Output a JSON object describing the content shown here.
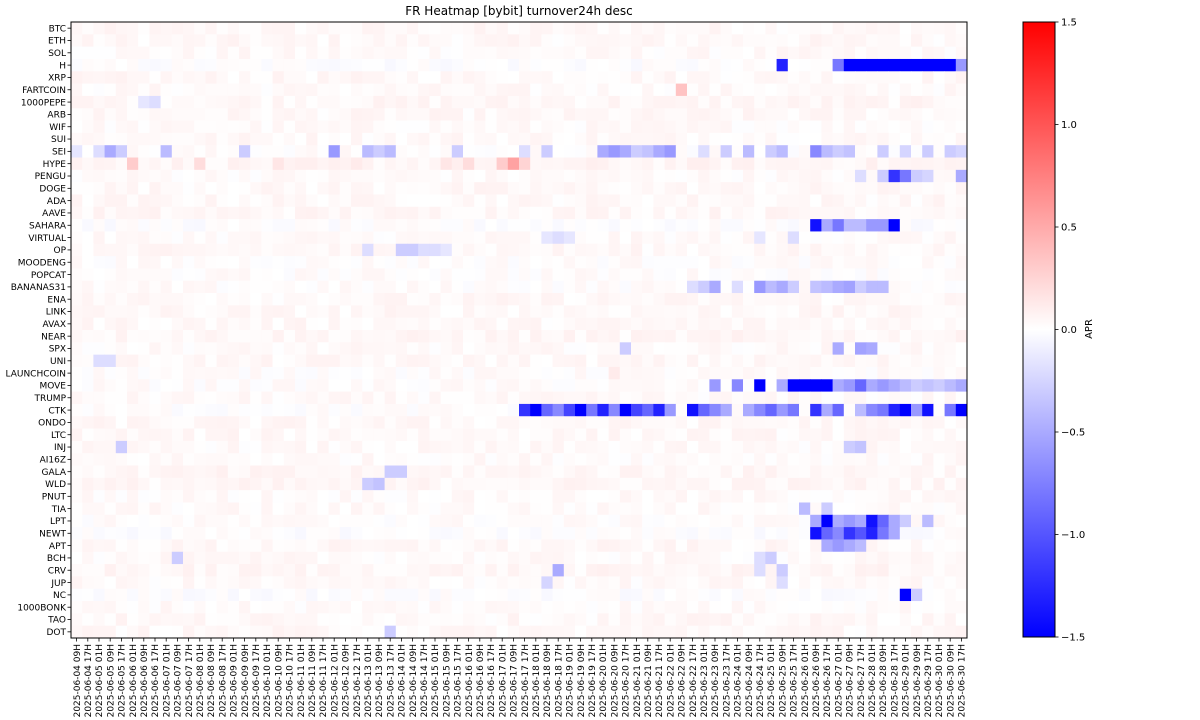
{
  "chart_data": {
    "type": "heatmap",
    "title": "FR Heatmap [bybit] turnover24h desc",
    "colorbar": {
      "label": "APR",
      "range": [
        -1.5,
        1.5
      ],
      "ticks": [
        "1.5",
        "1.0",
        "0.5",
        "0.0",
        "−0.5",
        "−1.0",
        "−1.5"
      ],
      "tick_values": [
        1.5,
        1.0,
        0.5,
        0.0,
        -0.5,
        -1.0,
        -1.5
      ],
      "colormap": "bwr",
      "colors": {
        "low": "#0000ff",
        "mid": "#ffffff",
        "high": "#ff0000"
      }
    },
    "rows": [
      "BTC",
      "ETH",
      "SOL",
      "H",
      "XRP",
      "FARTCOIN",
      "1000PEPE",
      "ARB",
      "WIF",
      "SUI",
      "SEI",
      "HYPE",
      "PENGU",
      "DOGE",
      "ADA",
      "AAVE",
      "SAHARA",
      "VIRTUAL",
      "OP",
      "MOODENG",
      "POPCAT",
      "BANANAS31",
      "ENA",
      "LINK",
      "AVAX",
      "NEAR",
      "SPX",
      "UNI",
      "LAUNCHCOIN",
      "MOVE",
      "TRUMP",
      "CTK",
      "ONDO",
      "LTC",
      "INJ",
      "AI16Z",
      "GALA",
      "WLD",
      "PNUT",
      "TIA",
      "LPT",
      "NEWT",
      "APT",
      "BCH",
      "CRV",
      "JUP",
      "NC",
      "1000BONK",
      "TAO",
      "DOT"
    ],
    "columns": [
      "2025-06-04 09H",
      "2025-06-04 17H",
      "2025-06-05 01H",
      "2025-06-05 09H",
      "2025-06-05 17H",
      "2025-06-06 01H",
      "2025-06-06 09H",
      "2025-06-06 17H",
      "2025-06-07 01H",
      "2025-06-07 09H",
      "2025-06-07 17H",
      "2025-06-08 01H",
      "2025-06-08 09H",
      "2025-06-08 17H",
      "2025-06-09 01H",
      "2025-06-09 09H",
      "2025-06-09 17H",
      "2025-06-10 01H",
      "2025-06-10 09H",
      "2025-06-10 17H",
      "2025-06-11 01H",
      "2025-06-11 09H",
      "2025-06-11 17H",
      "2025-06-12 01H",
      "2025-06-12 09H",
      "2025-06-12 17H",
      "2025-06-13 01H",
      "2025-06-13 09H",
      "2025-06-13 17H",
      "2025-06-14 01H",
      "2025-06-14 09H",
      "2025-06-14 17H",
      "2025-06-15 01H",
      "2025-06-15 09H",
      "2025-06-15 17H",
      "2025-06-16 01H",
      "2025-06-16 09H",
      "2025-06-16 17H",
      "2025-06-17 01H",
      "2025-06-17 09H",
      "2025-06-17 17H",
      "2025-06-18 01H",
      "2025-06-18 09H",
      "2025-06-18 17H",
      "2025-06-19 01H",
      "2025-06-19 09H",
      "2025-06-19 17H",
      "2025-06-20 01H",
      "2025-06-20 09H",
      "2025-06-20 17H",
      "2025-06-21 01H",
      "2025-06-21 09H",
      "2025-06-21 17H",
      "2025-06-22 01H",
      "2025-06-22 09H",
      "2025-06-22 17H",
      "2025-06-23 01H",
      "2025-06-23 09H",
      "2025-06-23 17H",
      "2025-06-24 01H",
      "2025-06-24 09H",
      "2025-06-24 17H",
      "2025-06-25 01H",
      "2025-06-25 09H",
      "2025-06-25 17H",
      "2025-06-26 01H",
      "2025-06-26 09H",
      "2025-06-26 17H",
      "2025-06-27 01H",
      "2025-06-27 09H",
      "2025-06-27 17H",
      "2025-06-28 01H",
      "2025-06-28 09H",
      "2025-06-28 17H",
      "2025-06-29 01H",
      "2025-06-29 09H",
      "2025-06-29 17H",
      "2025-06-30 01H",
      "2025-06-30 09H",
      "2025-06-30 17H"
    ],
    "cells_per_column_label": 1,
    "n_cells": 80,
    "baseline": {
      "BTC": 0.04,
      "ETH": 0.04,
      "SOL": 0.03,
      "H": 0.0,
      "XRP": 0.04,
      "FARTCOIN": 0.03,
      "1000PEPE": 0.05,
      "ARB": 0.04,
      "WIF": 0.03,
      "SUI": 0.04,
      "SEI": 0.02,
      "HYPE": 0.06,
      "PENGU": 0.03,
      "DOGE": 0.04,
      "ADA": 0.04,
      "AAVE": 0.05,
      "SAHARA": 0.0,
      "VIRTUAL": 0.03,
      "OP": 0.04,
      "MOODENG": 0.02,
      "POPCAT": 0.02,
      "BANANAS31": 0.02,
      "ENA": 0.04,
      "LINK": 0.04,
      "AVAX": 0.04,
      "NEAR": 0.05,
      "SPX": 0.03,
      "UNI": 0.04,
      "LAUNCHCOIN": 0.02,
      "MOVE": 0.02,
      "TRUMP": 0.03,
      "CTK": 0.01,
      "ONDO": 0.04,
      "LTC": 0.04,
      "INJ": 0.03,
      "AI16Z": 0.03,
      "GALA": 0.05,
      "WLD": 0.05,
      "PNUT": 0.03,
      "TIA": 0.03,
      "LPT": 0.02,
      "NEWT": 0.0,
      "APT": 0.04,
      "BCH": 0.03,
      "CRV": 0.05,
      "JUP": 0.03,
      "NC": 0.0,
      "1000BONK": 0.03,
      "TAO": 0.04,
      "DOT": 0.04
    },
    "cells": {
      "H": [
        [
          63,
          -1.3
        ],
        [
          68,
          -0.8
        ],
        [
          69,
          -1.5
        ],
        [
          70,
          -1.5
        ],
        [
          71,
          -1.5
        ],
        [
          72,
          -1.5
        ],
        [
          73,
          -1.5
        ],
        [
          74,
          -1.5
        ],
        [
          75,
          -1.5
        ],
        [
          76,
          -1.5
        ],
        [
          77,
          -1.5
        ],
        [
          78,
          -1.5
        ],
        [
          79,
          -0.6
        ]
      ],
      "FARTCOIN": [
        [
          54,
          0.35
        ]
      ],
      "1000PEPE": [
        [
          6,
          -0.15
        ],
        [
          7,
          -0.2
        ]
      ],
      "SEI": [
        [
          0,
          -0.15
        ],
        [
          2,
          -0.2
        ],
        [
          3,
          -0.5
        ],
        [
          4,
          -0.3
        ],
        [
          8,
          -0.4
        ],
        [
          15,
          -0.3
        ],
        [
          23,
          -0.6
        ],
        [
          26,
          -0.4
        ],
        [
          27,
          -0.3
        ],
        [
          28,
          -0.4
        ],
        [
          34,
          -0.3
        ],
        [
          40,
          -0.2
        ],
        [
          42,
          -0.3
        ],
        [
          47,
          -0.5
        ],
        [
          48,
          -0.6
        ],
        [
          49,
          -0.5
        ],
        [
          50,
          -0.3
        ],
        [
          51,
          -0.35
        ],
        [
          52,
          -0.5
        ],
        [
          53,
          -0.6
        ],
        [
          56,
          -0.2
        ],
        [
          58,
          -0.3
        ],
        [
          60,
          -0.4
        ],
        [
          62,
          -0.3
        ],
        [
          63,
          -0.4
        ],
        [
          66,
          -0.7
        ],
        [
          67,
          -0.4
        ],
        [
          68,
          -0.3
        ],
        [
          69,
          -0.35
        ],
        [
          72,
          -0.3
        ],
        [
          74,
          -0.25
        ],
        [
          76,
          -0.3
        ],
        [
          78,
          -0.3
        ],
        [
          79,
          -0.25
        ]
      ],
      "HYPE": [
        [
          5,
          0.3
        ],
        [
          11,
          0.2
        ],
        [
          18,
          0.15
        ],
        [
          25,
          0.12
        ],
        [
          33,
          0.15
        ],
        [
          35,
          0.2
        ],
        [
          38,
          0.3
        ],
        [
          39,
          0.55
        ],
        [
          40,
          0.25
        ]
      ],
      "PENGU": [
        [
          70,
          -0.2
        ],
        [
          72,
          -0.3
        ],
        [
          73,
          -1.2
        ],
        [
          74,
          -0.8
        ],
        [
          75,
          -0.3
        ],
        [
          76,
          -0.25
        ],
        [
          79,
          -0.5
        ]
      ],
      "SAHARA": [
        [
          66,
          -1.4
        ],
        [
          67,
          -0.5
        ],
        [
          68,
          -0.8
        ],
        [
          69,
          -0.4
        ],
        [
          70,
          -0.4
        ],
        [
          71,
          -0.6
        ],
        [
          72,
          -0.6
        ],
        [
          73,
          -1.5
        ]
      ],
      "VIRTUAL": [
        [
          42,
          -0.15
        ],
        [
          43,
          -0.2
        ],
        [
          44,
          -0.15
        ],
        [
          61,
          -0.15
        ],
        [
          64,
          -0.2
        ]
      ],
      "OP": [
        [
          26,
          -0.2
        ],
        [
          29,
          -0.3
        ],
        [
          30,
          -0.3
        ],
        [
          31,
          -0.2
        ],
        [
          32,
          -0.2
        ],
        [
          33,
          -0.15
        ]
      ],
      "BANANAS31": [
        [
          55,
          -0.2
        ],
        [
          56,
          -0.3
        ],
        [
          57,
          -0.5
        ],
        [
          59,
          -0.2
        ],
        [
          61,
          -0.6
        ],
        [
          62,
          -0.4
        ],
        [
          63,
          -0.5
        ],
        [
          64,
          -0.3
        ],
        [
          66,
          -0.35
        ],
        [
          67,
          -0.4
        ],
        [
          68,
          -0.5
        ],
        [
          69,
          -0.55
        ],
        [
          70,
          -0.3
        ],
        [
          71,
          -0.4
        ],
        [
          72,
          -0.4
        ]
      ],
      "SPX": [
        [
          49,
          -0.3
        ],
        [
          68,
          -0.5
        ],
        [
          70,
          -0.55
        ],
        [
          71,
          -0.5
        ]
      ],
      "UNI": [
        [
          2,
          -0.2
        ],
        [
          3,
          -0.2
        ]
      ],
      "LAUNCHCOIN": [
        [
          48,
          0.12
        ]
      ],
      "MOVE": [
        [
          57,
          -0.6
        ],
        [
          59,
          -0.7
        ],
        [
          61,
          -1.5
        ],
        [
          63,
          -0.5
        ],
        [
          64,
          -1.5
        ],
        [
          65,
          -1.5
        ],
        [
          66,
          -1.5
        ],
        [
          67,
          -1.5
        ],
        [
          68,
          -0.5
        ],
        [
          69,
          -0.6
        ],
        [
          70,
          -0.9
        ],
        [
          71,
          -0.5
        ],
        [
          72,
          -0.6
        ],
        [
          73,
          -0.5
        ],
        [
          74,
          -0.4
        ],
        [
          75,
          -0.3
        ],
        [
          76,
          -0.35
        ],
        [
          77,
          -0.3
        ],
        [
          78,
          -0.4
        ],
        [
          79,
          -0.5
        ]
      ],
      "CTK": [
        [
          40,
          -1.2
        ],
        [
          41,
          -1.5
        ],
        [
          42,
          -0.9
        ],
        [
          43,
          -0.7
        ],
        [
          44,
          -1.1
        ],
        [
          45,
          -1.5
        ],
        [
          46,
          -0.8
        ],
        [
          47,
          -1.3
        ],
        [
          48,
          -0.7
        ],
        [
          49,
          -1.5
        ],
        [
          50,
          -1.1
        ],
        [
          51,
          -0.9
        ],
        [
          52,
          -1.3
        ],
        [
          53,
          -0.6
        ],
        [
          55,
          -1.4
        ],
        [
          56,
          -0.9
        ],
        [
          57,
          -0.7
        ],
        [
          58,
          -0.5
        ],
        [
          60,
          -0.5
        ],
        [
          61,
          -0.7
        ],
        [
          62,
          -0.9
        ],
        [
          63,
          -0.6
        ],
        [
          64,
          -0.8
        ],
        [
          66,
          -1.2
        ],
        [
          67,
          -0.5
        ],
        [
          68,
          -0.9
        ],
        [
          70,
          -0.4
        ],
        [
          71,
          -0.7
        ],
        [
          72,
          -0.8
        ],
        [
          73,
          -1.3
        ],
        [
          74,
          -1.5
        ],
        [
          75,
          -0.6
        ],
        [
          76,
          -1.4
        ],
        [
          78,
          -0.8
        ],
        [
          79,
          -1.5
        ]
      ],
      "INJ": [
        [
          4,
          -0.3
        ],
        [
          69,
          -0.3
        ],
        [
          70,
          -0.35
        ]
      ],
      "GALA": [
        [
          28,
          -0.3
        ],
        [
          29,
          -0.3
        ]
      ],
      "WLD": [
        [
          26,
          -0.3
        ],
        [
          27,
          -0.35
        ]
      ],
      "TIA": [
        [
          65,
          -0.4
        ],
        [
          67,
          -0.3
        ]
      ],
      "LPT": [
        [
          66,
          -0.5
        ],
        [
          67,
          -1.5
        ],
        [
          68,
          -0.5
        ],
        [
          69,
          -0.6
        ],
        [
          70,
          -0.5
        ],
        [
          71,
          -1.4
        ],
        [
          72,
          -0.9
        ],
        [
          73,
          -0.5
        ],
        [
          74,
          -0.3
        ],
        [
          76,
          -0.4
        ]
      ],
      "NEWT": [
        [
          66,
          -1.4
        ],
        [
          67,
          -0.9
        ],
        [
          68,
          -0.7
        ],
        [
          69,
          -1.2
        ],
        [
          70,
          -1.0
        ],
        [
          71,
          -1.3
        ],
        [
          72,
          -0.8
        ],
        [
          73,
          -0.5
        ]
      ],
      "APT": [
        [
          67,
          -0.5
        ],
        [
          68,
          -0.6
        ],
        [
          69,
          -0.5
        ],
        [
          70,
          -0.4
        ]
      ],
      "BCH": [
        [
          9,
          -0.3
        ],
        [
          61,
          -0.2
        ],
        [
          62,
          -0.3
        ]
      ],
      "CRV": [
        [
          43,
          -0.5
        ],
        [
          61,
          -0.2
        ],
        [
          63,
          -0.3
        ]
      ],
      "JUP": [
        [
          42,
          -0.25
        ],
        [
          63,
          -0.2
        ]
      ],
      "NC": [
        [
          74,
          -1.5
        ],
        [
          75,
          -0.3
        ]
      ],
      "DOT": [
        [
          28,
          -0.3
        ]
      ]
    }
  }
}
